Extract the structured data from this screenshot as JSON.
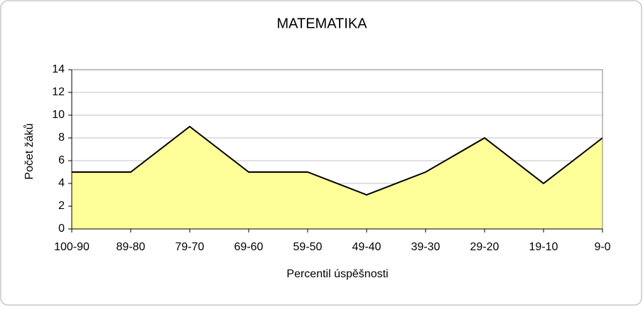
{
  "chart_data": {
    "type": "area",
    "title": "MATEMATIKA",
    "x_label": "Percentil úspěšnosti",
    "y_label": "Počet žáků",
    "categories": [
      "100-90",
      "89-80",
      "79-70",
      "69-60",
      "59-50",
      "49-40",
      "39-30",
      "29-20",
      "19-10",
      "9-0"
    ],
    "values": [
      5,
      5,
      9,
      5,
      5,
      3,
      5,
      8,
      4,
      8
    ],
    "color": "#ffff99",
    "line_color": "#000000",
    "ylim": [
      0,
      14
    ],
    "yticks": [
      0,
      2,
      4,
      6,
      8,
      10,
      12,
      14
    ],
    "grid": true
  }
}
